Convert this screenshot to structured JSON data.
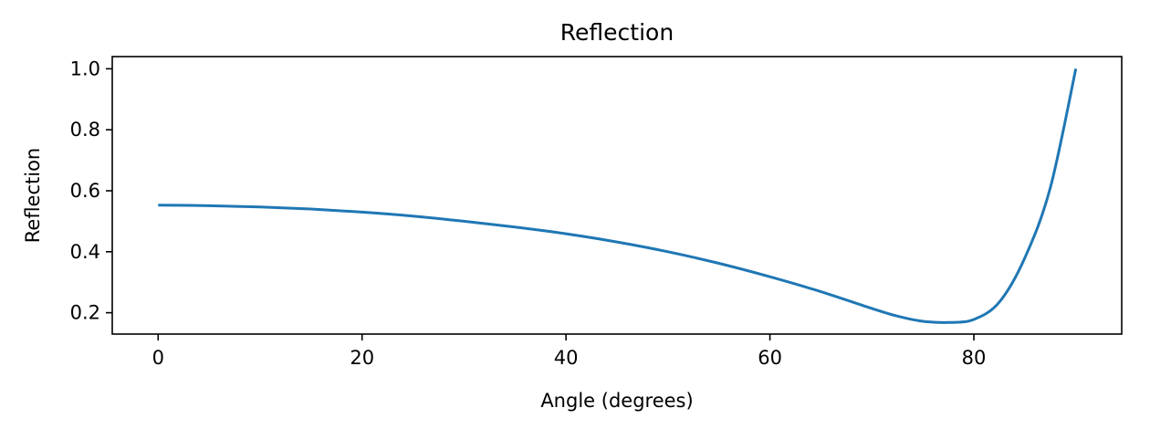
{
  "chart_data": {
    "type": "line",
    "title": "Reflection",
    "xlabel": "Angle (degrees)",
    "ylabel": "Reflection",
    "xlim": [
      -4.5,
      94.5
    ],
    "ylim": [
      0.13,
      1.04
    ],
    "xticks": [
      0,
      20,
      40,
      60,
      80
    ],
    "xtick_labels": [
      "0",
      "20",
      "40",
      "60",
      "80"
    ],
    "yticks": [
      0.2,
      0.4,
      0.6,
      0.8,
      1.0
    ],
    "ytick_labels": [
      "0.2",
      "0.4",
      "0.6",
      "0.8",
      "1.0"
    ],
    "grid": false,
    "series": [
      {
        "color": "#1f77b4",
        "x": [
          0,
          5,
          10,
          15,
          20,
          25,
          30,
          35,
          40,
          45,
          50,
          55,
          60,
          65,
          70,
          72.5,
          75,
          77.5,
          80,
          82.5,
          85,
          87.5,
          90
        ],
        "y": [
          0.553,
          0.551,
          0.547,
          0.54,
          0.53,
          0.517,
          0.5,
          0.481,
          0.459,
          0.432,
          0.4,
          0.362,
          0.318,
          0.269,
          0.214,
          0.189,
          0.172,
          0.168,
          0.178,
          0.235,
          0.38,
          0.61,
          1.0
        ]
      }
    ]
  }
}
